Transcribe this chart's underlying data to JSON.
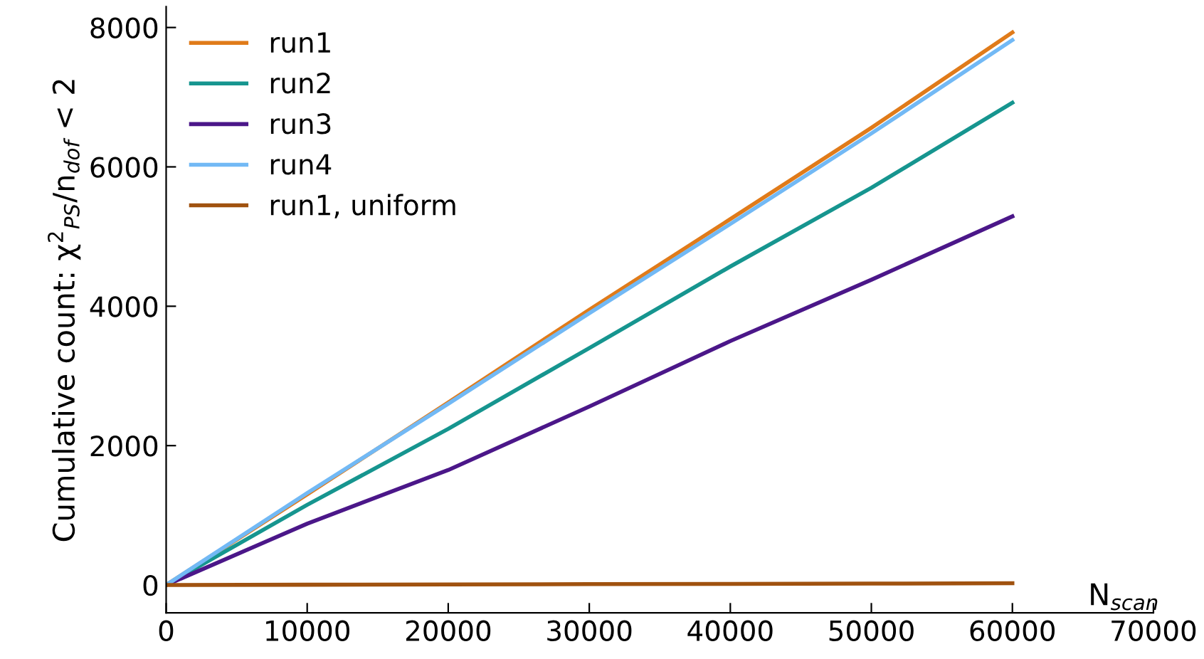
{
  "chart_data": {
    "type": "line",
    "xlabel": "N$_{scan}$",
    "ylabel": "Cumulative count: χ$^{2}$$_{PS}$/n$_{dof}$ < 2",
    "x": [
      0,
      10000,
      20000,
      30000,
      40000,
      50000,
      60000
    ],
    "series": [
      {
        "name": "run1",
        "color": "#e07b1a",
        "values": [
          0,
          1300,
          2620,
          3950,
          5250,
          6560,
          7930
        ]
      },
      {
        "name": "run2",
        "color": "#16958f",
        "values": [
          0,
          1150,
          2240,
          3400,
          4570,
          5700,
          6920
        ]
      },
      {
        "name": "run3",
        "color": "#4b1789",
        "values": [
          0,
          880,
          1650,
          2560,
          3500,
          4380,
          5290
        ]
      },
      {
        "name": "run4",
        "color": "#72b9f5",
        "values": [
          0,
          1320,
          2600,
          3900,
          5180,
          6480,
          7820
        ]
      },
      {
        "name": "run1, uniform",
        "color": "#a0520f",
        "values": [
          0,
          4,
          8,
          12,
          16,
          20,
          25
        ]
      }
    ],
    "xlim": [
      0,
      70000
    ],
    "ylim": [
      -400,
      8300
    ],
    "xticks": [
      0,
      10000,
      20000,
      30000,
      40000,
      50000,
      60000,
      70000
    ],
    "yticks": [
      0,
      2000,
      4000,
      6000,
      8000
    ],
    "legend": "top left",
    "grid": false,
    "marker": "none",
    "line_style": "solid"
  }
}
